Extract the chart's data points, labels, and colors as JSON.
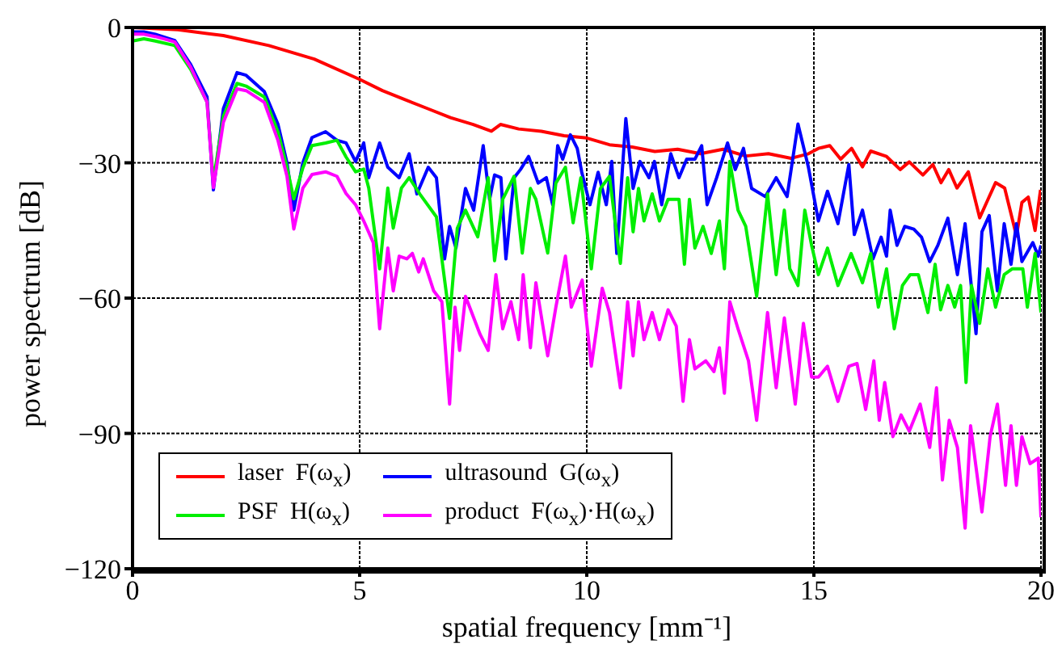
{
  "chart_data": {
    "type": "line",
    "xlabel": "spatial frequency [mm⁻¹]",
    "ylabel": "power spectrum [dB]",
    "xlim": [
      0,
      20
    ],
    "xticks": [
      0,
      5,
      10,
      15,
      20
    ],
    "ylim": [
      -120,
      0
    ],
    "yticks": [
      0,
      -30,
      -60,
      -90,
      -120
    ],
    "grid": true,
    "legend": "bottom left",
    "line_style": "solid",
    "marker": "none",
    "series": [
      {
        "name": "laser  F(ω$_{x}$)",
        "color": "#ff0000",
        "x": [
          0,
          1,
          2,
          3,
          4,
          5,
          5.5,
          6,
          6.5,
          7,
          7.5,
          7.9,
          8.1,
          8.5,
          9,
          9.5,
          10,
          10.5,
          11,
          11.5,
          12,
          12.5,
          13,
          13.5,
          14,
          14.5,
          14.88,
          15.1,
          15.35,
          15.59,
          15.83,
          16.07,
          16.25,
          16.6,
          16.9,
          17.1,
          17.4,
          17.62,
          17.8,
          17.97,
          18.15,
          18.4,
          18.65,
          18.83,
          19.0,
          19.2,
          19.46,
          19.58,
          19.72,
          19.87,
          19.99
        ],
        "values": [
          0,
          -0.5,
          -1.8,
          -4,
          -7,
          -11.5,
          -14,
          -16,
          -18,
          -20,
          -21.5,
          -23,
          -21.5,
          -22.5,
          -23,
          -24,
          -24.5,
          -26,
          -26.5,
          -27.5,
          -27,
          -28,
          -27,
          -28.5,
          -28,
          -29,
          -28,
          -26.8,
          -26.2,
          -29.2,
          -26.8,
          -30.9,
          -27.4,
          -28.6,
          -31.5,
          -29.8,
          -32.7,
          -30.4,
          -34.4,
          -31.5,
          -35.6,
          -32,
          -42.2,
          -38.2,
          -34.4,
          -35.6,
          -46.2,
          -38.8,
          -37.6,
          -45,
          -36
        ]
      },
      {
        "name": "ultrasound  G(ω$_{x}$)",
        "color": "#0000ff",
        "x": [
          0,
          0.25,
          0.5,
          0.93,
          1.28,
          1.64,
          1.78,
          2.0,
          2.3,
          2.5,
          2.9,
          3.2,
          3.4,
          3.55,
          3.75,
          3.95,
          4.25,
          4.5,
          4.7,
          4.91,
          5.09,
          5.2,
          5.44,
          5.62,
          5.87,
          6.09,
          6.26,
          6.51,
          6.69,
          6.87,
          6.98,
          7.12,
          7.33,
          7.51,
          7.72,
          7.86,
          7.97,
          8.11,
          8.22,
          8.4,
          8.54,
          8.72,
          8.93,
          9.11,
          9.25,
          9.36,
          9.47,
          9.64,
          9.79,
          9.89,
          10.07,
          10.25,
          10.43,
          10.55,
          10.66,
          10.86,
          11.02,
          11.17,
          11.37,
          11.49,
          11.65,
          11.85,
          12.03,
          12.2,
          12.38,
          12.53,
          12.65,
          12.86,
          13.1,
          13.27,
          13.45,
          13.63,
          13.93,
          14.17,
          14.41,
          14.65,
          14.88,
          15.1,
          15.3,
          15.53,
          15.77,
          15.89,
          16.07,
          16.3,
          16.48,
          16.6,
          16.68,
          16.83,
          17.0,
          17.2,
          17.37,
          17.55,
          17.73,
          17.95,
          18.16,
          18.33,
          18.57,
          18.7,
          18.86,
          19.04,
          19.19,
          19.34,
          19.46,
          19.58,
          19.82,
          19.94,
          20
        ],
        "values": [
          -1,
          -1,
          -1.5,
          -2.9,
          -8.2,
          -15.4,
          -36,
          -18,
          -10,
          -10.6,
          -14.2,
          -21.4,
          -30,
          -40.5,
          -30,
          -24.4,
          -23.1,
          -25,
          -25.6,
          -29.7,
          -25.6,
          -33.3,
          -25.6,
          -31,
          -33.3,
          -28,
          -36.9,
          -31,
          -33.3,
          -51.3,
          -44.1,
          -48.9,
          -35.7,
          -40.5,
          -26.2,
          -38.1,
          -32.7,
          -33.3,
          -51.3,
          -33.3,
          -31.5,
          -28.6,
          -34.5,
          -33.3,
          -39.3,
          -26.2,
          -29.2,
          -23.8,
          -26.8,
          -32.1,
          -39.3,
          -32.1,
          -39.3,
          -29.7,
          -50.1,
          -20.2,
          -35.7,
          -29.7,
          -33.3,
          -29.7,
          -39.3,
          -28,
          -33.3,
          -29.2,
          -29.2,
          -26.2,
          -39.3,
          -33.3,
          -25.6,
          -31.5,
          -26.8,
          -35.7,
          -37.5,
          -33.3,
          -37.5,
          -21.4,
          -31,
          -42.9,
          -36.3,
          -43.5,
          -30.4,
          -45.9,
          -40.5,
          -51.3,
          -46.5,
          -50.7,
          -40.5,
          -48.3,
          -44.1,
          -44.7,
          -46.5,
          -51.9,
          -48.3,
          -42.3,
          -54.8,
          -43.5,
          -67.9,
          -45.3,
          -41.7,
          -58.4,
          -43.5,
          -52.5,
          -43.5,
          -51.9,
          -47.7,
          -50.7,
          -48.3
        ]
      },
      {
        "name": "PSF  H(ω$_{x}$)",
        "color": "#00ee00",
        "x": [
          0,
          0.25,
          0.5,
          0.93,
          1.28,
          1.64,
          1.78,
          2.0,
          2.3,
          2.5,
          2.9,
          3.2,
          3.4,
          3.55,
          3.75,
          3.95,
          4.25,
          4.5,
          4.7,
          4.91,
          5.09,
          5.2,
          5.44,
          5.62,
          5.74,
          5.92,
          6.09,
          6.33,
          6.69,
          6.98,
          7.15,
          7.33,
          7.6,
          7.83,
          7.97,
          8.15,
          8.4,
          8.58,
          8.76,
          8.88,
          9.14,
          9.32,
          9.53,
          9.7,
          9.87,
          10.1,
          10.3,
          10.5,
          10.74,
          10.9,
          11.02,
          11.14,
          11.26,
          11.44,
          11.6,
          11.79,
          12.03,
          12.15,
          12.26,
          12.38,
          12.56,
          12.74,
          12.92,
          13.03,
          13.15,
          13.33,
          13.5,
          13.74,
          13.98,
          14.17,
          14.35,
          14.47,
          14.65,
          14.8,
          14.95,
          15.1,
          15.3,
          15.53,
          15.82,
          16.07,
          16.25,
          16.42,
          16.6,
          16.77,
          16.95,
          17.12,
          17.3,
          17.51,
          17.67,
          17.79,
          17.95,
          18.1,
          18.23,
          18.35,
          18.47,
          18.65,
          18.83,
          19.0,
          19.19,
          19.37,
          19.6,
          19.7,
          19.87,
          20
        ],
        "values": [
          -3,
          -2.5,
          -3,
          -4,
          -9.3,
          -16.5,
          -34,
          -19.7,
          -12.4,
          -13,
          -15.4,
          -23.1,
          -31,
          -38,
          -31.1,
          -26.2,
          -25.6,
          -25,
          -28.7,
          -32,
          -31.4,
          -35.6,
          -53.5,
          -35.6,
          -44.5,
          -35.6,
          -33.3,
          -37,
          -42,
          -64.5,
          -44.5,
          -40.5,
          -46.4,
          -33.3,
          -51.7,
          -38.1,
          -33,
          -50,
          -35.7,
          -38.1,
          -50,
          -34.5,
          -31,
          -43.3,
          -33.3,
          -53.5,
          -35.7,
          -33,
          -52.3,
          -33.3,
          -45.3,
          -35.7,
          -42.9,
          -36.9,
          -42.9,
          -38.1,
          -38.1,
          -52.5,
          -38.1,
          -48.9,
          -44.1,
          -50.1,
          -42.9,
          -53.5,
          -29.7,
          -40.5,
          -44.1,
          -59.6,
          -36.9,
          -54.8,
          -40.5,
          -53.5,
          -57.2,
          -40.5,
          -48.3,
          -54.8,
          -48.9,
          -57.2,
          -50.1,
          -56.6,
          -50.1,
          -62,
          -53.5,
          -66.8,
          -57.2,
          -54.8,
          -54.8,
          -63.2,
          -52.5,
          -62.6,
          -57.2,
          -62,
          -57.2,
          -78.7,
          -57.2,
          -65.6,
          -53.5,
          -62,
          -54.8,
          -53.5,
          -53.5,
          -62,
          -50.1,
          -63.2
        ]
      },
      {
        "name": "product  F(ω$_{x}$)·H(ω$_{x}$)",
        "color": "#ff00ff",
        "x": [
          0,
          0.25,
          0.5,
          0.93,
          1.28,
          1.64,
          1.78,
          2.0,
          2.3,
          2.5,
          2.9,
          3.2,
          3.4,
          3.55,
          3.75,
          3.95,
          4.25,
          4.5,
          4.7,
          4.91,
          5.09,
          5.3,
          5.44,
          5.62,
          5.74,
          5.87,
          6.04,
          6.16,
          6.3,
          6.4,
          6.63,
          6.81,
          6.98,
          7.1,
          7.2,
          7.33,
          7.65,
          7.83,
          8.0,
          8.15,
          8.33,
          8.5,
          8.6,
          8.76,
          8.88,
          9.14,
          9.32,
          9.53,
          9.66,
          9.9,
          10.1,
          10.34,
          10.5,
          10.74,
          10.9,
          11.02,
          11.14,
          11.26,
          11.44,
          11.6,
          11.79,
          11.97,
          12.12,
          12.26,
          12.38,
          12.62,
          12.8,
          12.92,
          13.03,
          13.15,
          13.33,
          13.56,
          13.74,
          13.98,
          14.17,
          14.35,
          14.59,
          14.77,
          14.95,
          15.1,
          15.3,
          15.53,
          15.77,
          15.95,
          16.14,
          16.32,
          16.44,
          16.56,
          16.74,
          16.92,
          17.1,
          17.34,
          17.55,
          17.7,
          17.83,
          17.98,
          18.16,
          18.33,
          18.45,
          18.7,
          18.88,
          19.04,
          19.22,
          19.34,
          19.46,
          19.58,
          19.76,
          19.94,
          20
        ],
        "values": [
          -1.5,
          -1.5,
          -2,
          -3.2,
          -8.8,
          -16.6,
          -35.5,
          -21,
          -13.6,
          -14,
          -16.6,
          -25,
          -33,
          -44.7,
          -35.6,
          -32.6,
          -32,
          -33,
          -36.8,
          -39.3,
          -42.9,
          -47.7,
          -66.8,
          -48.9,
          -58.4,
          -50.7,
          -51.3,
          -50.1,
          -54.2,
          -51.3,
          -58.4,
          -60.8,
          -83.5,
          -62,
          -71.6,
          -59.6,
          -68,
          -71.6,
          -54.8,
          -66.8,
          -60.8,
          -69.2,
          -54.8,
          -71,
          -56.6,
          -72.8,
          -62,
          -50.7,
          -62,
          -56,
          -75.1,
          -57.8,
          -63.2,
          -79.9,
          -60.8,
          -72.8,
          -60.8,
          -69.2,
          -63.2,
          -69.2,
          -62.6,
          -66.2,
          -82.9,
          -69.2,
          -75.7,
          -73.9,
          -76.3,
          -71,
          -81.1,
          -60.8,
          -66.8,
          -73.9,
          -87.1,
          -63.2,
          -79.9,
          -64.4,
          -83.5,
          -65.6,
          -77.5,
          -77.5,
          -75.1,
          -82.9,
          -75.1,
          -74.5,
          -84.7,
          -73.9,
          -87.1,
          -78.7,
          -90.7,
          -85.9,
          -89.5,
          -83.5,
          -93.1,
          -79.9,
          -100.3,
          -87.1,
          -93.1,
          -111,
          -88.3,
          -107.4,
          -90.7,
          -83.5,
          -101.5,
          -88.3,
          -101.5,
          -90.7,
          -96.7,
          -95.5,
          -108.6
        ]
      }
    ]
  }
}
